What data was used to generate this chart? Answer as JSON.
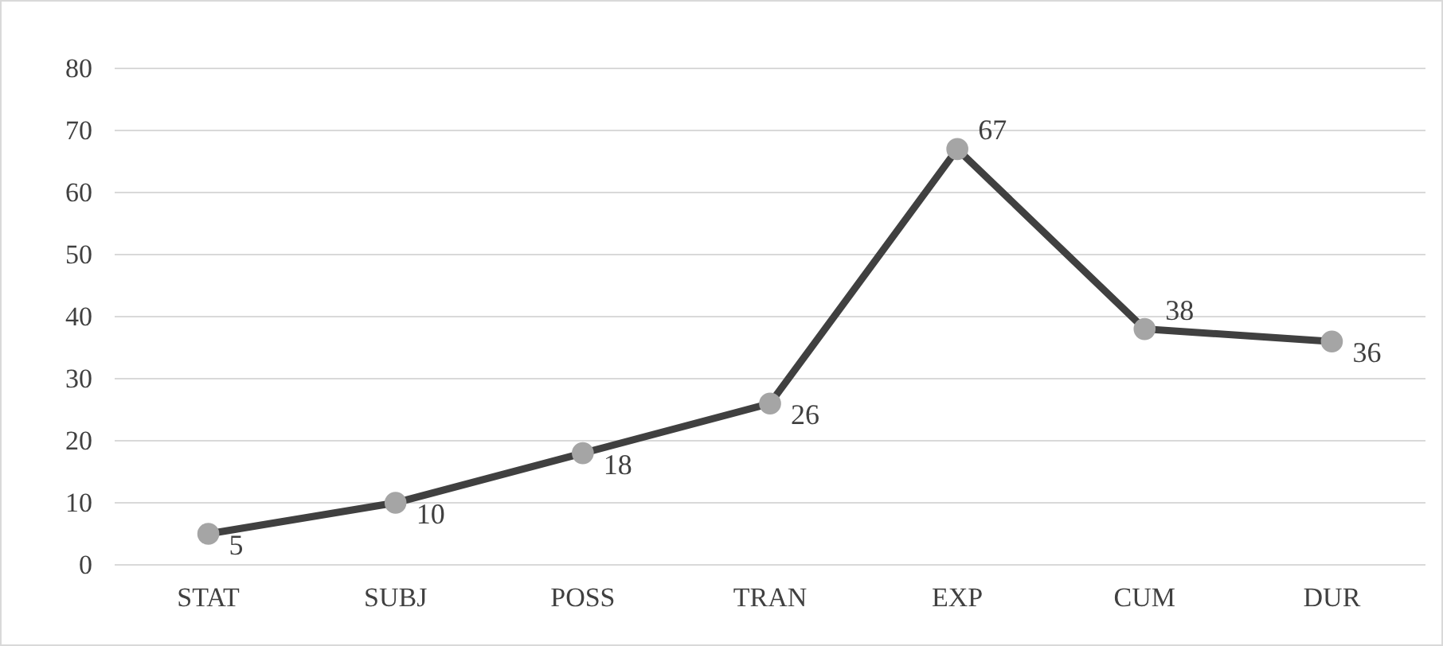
{
  "chart_data": {
    "type": "line",
    "categories": [
      "STAT",
      "SUBJ",
      "POSS",
      "TRAN",
      "EXP",
      "CUM",
      "DUR"
    ],
    "series": [
      {
        "color": "#404040",
        "values": [
          5,
          10,
          18,
          26,
          67,
          38,
          36
        ]
      }
    ],
    "ylim": [
      0,
      80
    ],
    "yticks": [
      0,
      10,
      20,
      30,
      40,
      50,
      60,
      70,
      80
    ],
    "grid": "y",
    "marker": "circle",
    "line_style": "solid",
    "data_labels": true
  }
}
